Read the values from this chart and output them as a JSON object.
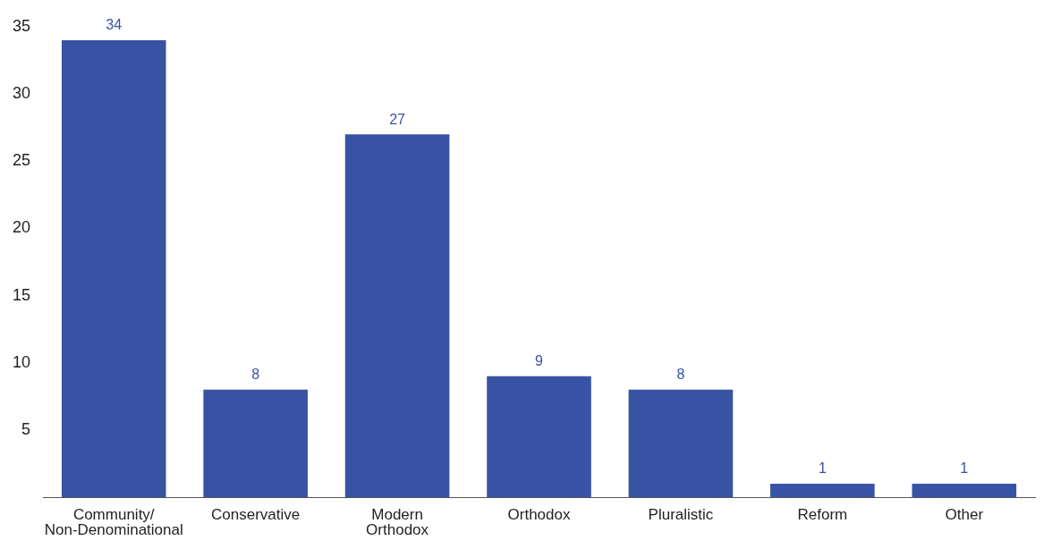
{
  "chart_data": {
    "type": "bar",
    "categories": [
      "Community/ Non-Denominational",
      "Conservative",
      "Modern Orthodox",
      "Orthodox",
      "Pluralistic",
      "Reform",
      "Other"
    ],
    "values": [
      34,
      8,
      27,
      9,
      8,
      1,
      1
    ],
    "color": "#3953a4",
    "ylim": [
      0,
      35
    ],
    "yticks": [
      5,
      10,
      15,
      20,
      25,
      30,
      35
    ],
    "grid": false,
    "data_labels": true
  }
}
